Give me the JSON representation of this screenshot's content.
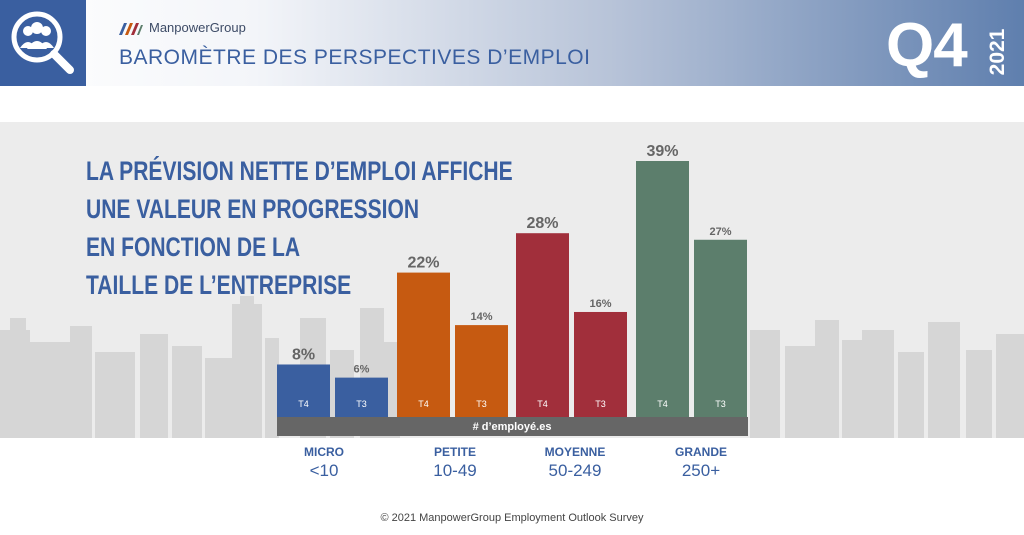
{
  "header": {
    "brand": "ManpowerGroup",
    "title": "BAROMÈTRE DES PERSPECTIVES D’EMPLOI",
    "quarter": "Q4",
    "year": "2021"
  },
  "headline": [
    "LA PRÉVISION NETTE D’EMPLOI AFFICHE",
    "UNE VALEUR EN PROGRESSION",
    "EN FONCTION DE LA",
    "TAILLE DE L’ENTREPRISE"
  ],
  "chart_data": {
    "type": "bar",
    "categories": [
      {
        "name": "MICRO",
        "range": "<10"
      },
      {
        "name": "PETITE",
        "range": "10-49"
      },
      {
        "name": "MOYENNE",
        "range": "50-249"
      },
      {
        "name": "GRANDE",
        "range": "250+"
      }
    ],
    "series": [
      {
        "name": "T4",
        "values": [
          8,
          22,
          28,
          39
        ]
      },
      {
        "name": "T3",
        "values": [
          6,
          14,
          16,
          27
        ]
      }
    ],
    "value_labels": [
      [
        "8%",
        "6%"
      ],
      [
        "22%",
        "14%"
      ],
      [
        "28%",
        "16%"
      ],
      [
        "39%",
        "27%"
      ]
    ],
    "colors": [
      "#3a5fa0",
      "#c65a11",
      "#a12f3b",
      "#5c7e6c"
    ],
    "axis_label": "# d’employé.es",
    "ylim": [
      0,
      40
    ]
  },
  "footer": "© 2021 ManpowerGroup Employment Outlook Survey"
}
